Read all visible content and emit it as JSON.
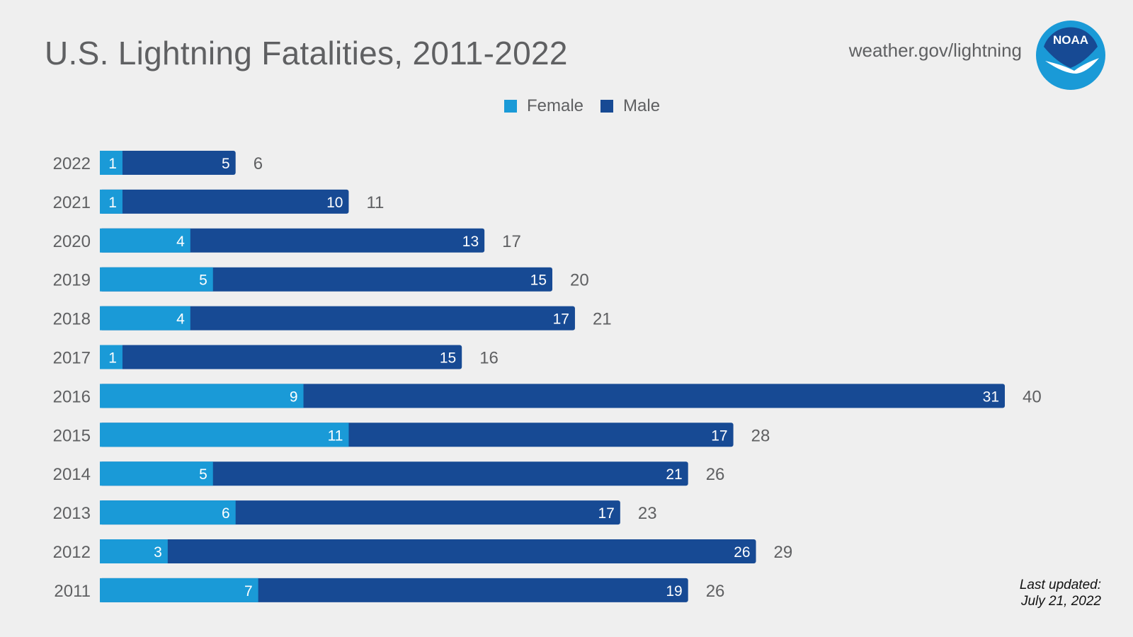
{
  "header": {
    "title": "U.S. Lightning Fatalities, 2011-2022",
    "site": "weather.gov/lightning",
    "logo_text": "NOAA"
  },
  "legend": {
    "female_label": "Female",
    "male_label": "Male"
  },
  "footer": {
    "updated_line1": "Last updated:",
    "updated_line2": "July 21, 2022"
  },
  "colors": {
    "female": "#1a9ad7",
    "male": "#174a94",
    "background": "#efefef",
    "text": "#5f6062"
  },
  "chart_data": {
    "type": "bar",
    "orientation": "horizontal",
    "stacked": true,
    "title": "U.S. Lightning Fatalities, 2011-2022",
    "categories": [
      "2022",
      "2021",
      "2020",
      "2019",
      "2018",
      "2017",
      "2016",
      "2015",
      "2014",
      "2013",
      "2012",
      "2011"
    ],
    "series": [
      {
        "name": "Female",
        "color": "#1a9ad7",
        "values": [
          1,
          1,
          4,
          5,
          4,
          1,
          9,
          11,
          5,
          6,
          3,
          7
        ]
      },
      {
        "name": "Male",
        "color": "#174a94",
        "values": [
          5,
          10,
          13,
          15,
          17,
          15,
          31,
          17,
          21,
          17,
          26,
          19
        ]
      }
    ],
    "totals": [
      6,
      11,
      17,
      20,
      21,
      16,
      40,
      28,
      26,
      23,
      29,
      26
    ],
    "xlim": [
      0,
      40
    ],
    "grid": false,
    "legend_position": "top-center"
  }
}
